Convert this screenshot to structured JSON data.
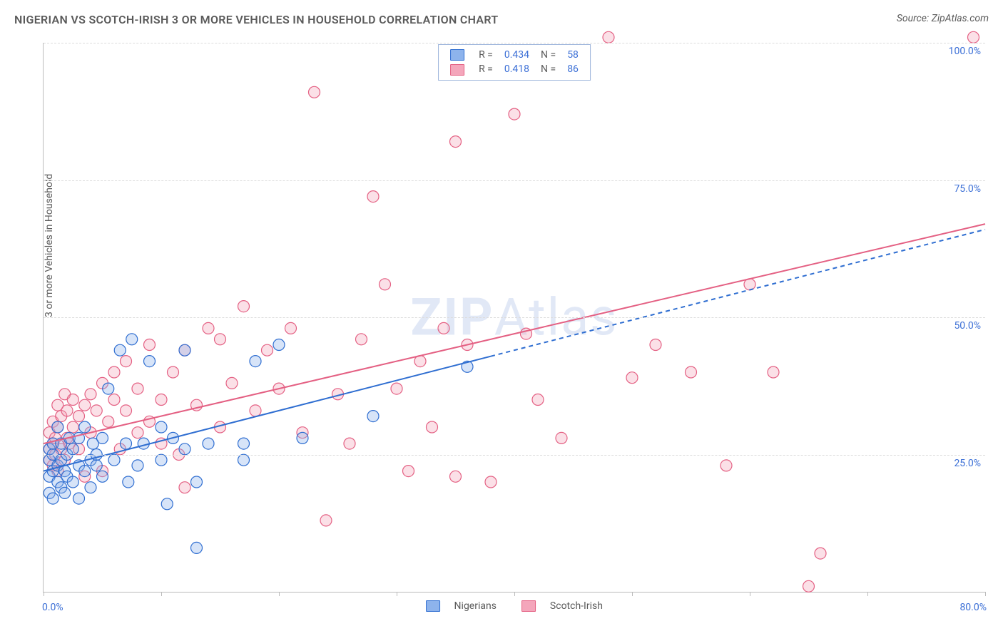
{
  "title": "NIGERIAN VS SCOTCH-IRISH 3 OR MORE VEHICLES IN HOUSEHOLD CORRELATION CHART",
  "source": "Source: ZipAtlas.com",
  "y_axis_label": "3 or more Vehicles in Household",
  "watermark": {
    "bold": "ZIP",
    "rest": "Atlas"
  },
  "chart": {
    "type": "scatter",
    "xlim": [
      0,
      80
    ],
    "ylim": [
      0,
      100
    ],
    "y_ticks": [
      25,
      50,
      75,
      100
    ],
    "y_tick_labels": [
      "25.0%",
      "50.0%",
      "75.0%",
      "100.0%"
    ],
    "x_ticks": [
      0,
      10,
      20,
      30,
      40,
      50,
      60,
      70,
      80
    ],
    "x_label_min": "0.0%",
    "x_label_max": "80.0%",
    "grid_color": "#dcdcdc",
    "axis_color": "#bbbbbb",
    "tick_label_color": "#3b6fd6",
    "background": "#ffffff",
    "marker_radius": 8,
    "series": {
      "nigerians": {
        "label": "Nigerians",
        "fill": "#8db3ec",
        "stroke": "#2f6ed1",
        "trend": {
          "slope": 0.55,
          "intercept": 22,
          "style": "solid",
          "color": "#2f6ed1",
          "width": 2,
          "x_to": 38,
          "dash_to": 80
        },
        "R": "0.434",
        "N": "58",
        "points": [
          [
            0.5,
            18
          ],
          [
            0.5,
            21
          ],
          [
            0.5,
            24
          ],
          [
            0.5,
            26
          ],
          [
            0.8,
            17
          ],
          [
            0.8,
            22
          ],
          [
            0.8,
            25
          ],
          [
            0.8,
            27
          ],
          [
            1.2,
            20
          ],
          [
            1.2,
            23
          ],
          [
            1.2,
            30
          ],
          [
            1.5,
            19
          ],
          [
            1.5,
            24
          ],
          [
            1.5,
            27
          ],
          [
            1.8,
            18
          ],
          [
            1.8,
            22
          ],
          [
            2,
            25
          ],
          [
            2,
            21
          ],
          [
            2.2,
            28
          ],
          [
            2.5,
            20
          ],
          [
            2.5,
            26
          ],
          [
            3,
            23
          ],
          [
            3,
            28
          ],
          [
            3,
            17
          ],
          [
            3.5,
            22
          ],
          [
            3.5,
            30
          ],
          [
            4,
            24
          ],
          [
            4,
            19
          ],
          [
            4.2,
            27
          ],
          [
            4.5,
            23
          ],
          [
            4.5,
            25
          ],
          [
            5,
            21
          ],
          [
            5,
            28
          ],
          [
            5.5,
            37
          ],
          [
            6,
            24
          ],
          [
            6.5,
            44
          ],
          [
            7,
            27
          ],
          [
            7.2,
            20
          ],
          [
            7.5,
            46
          ],
          [
            8,
            23
          ],
          [
            8.5,
            27
          ],
          [
            9,
            42
          ],
          [
            10,
            24
          ],
          [
            10,
            30
          ],
          [
            10.5,
            16
          ],
          [
            11,
            28
          ],
          [
            12,
            26
          ],
          [
            12,
            44
          ],
          [
            13,
            20
          ],
          [
            13,
            8
          ],
          [
            14,
            27
          ],
          [
            17,
            27
          ],
          [
            17,
            24
          ],
          [
            18,
            42
          ],
          [
            20,
            45
          ],
          [
            22,
            28
          ],
          [
            28,
            32
          ],
          [
            36,
            41
          ]
        ]
      },
      "scotch_irish": {
        "label": "Scotch-Irish",
        "fill": "#f4a6bb",
        "stroke": "#e46083",
        "trend": {
          "slope": 0.5,
          "intercept": 27,
          "style": "solid",
          "color": "#e46083",
          "width": 2,
          "x_to": 80
        },
        "R": "0.418",
        "N": "86",
        "points": [
          [
            0.5,
            24
          ],
          [
            0.5,
            26
          ],
          [
            0.5,
            29
          ],
          [
            0.8,
            23
          ],
          [
            0.8,
            27
          ],
          [
            0.8,
            31
          ],
          [
            1,
            25
          ],
          [
            1,
            28
          ],
          [
            1.2,
            22
          ],
          [
            1.2,
            30
          ],
          [
            1.2,
            34
          ],
          [
            1.5,
            26
          ],
          [
            1.5,
            32
          ],
          [
            1.8,
            24
          ],
          [
            1.8,
            36
          ],
          [
            2,
            28
          ],
          [
            2,
            33
          ],
          [
            2.2,
            27
          ],
          [
            2.5,
            30
          ],
          [
            2.5,
            35
          ],
          [
            3,
            26
          ],
          [
            3,
            32
          ],
          [
            3.5,
            21
          ],
          [
            3.5,
            34
          ],
          [
            4,
            29
          ],
          [
            4,
            36
          ],
          [
            4.5,
            33
          ],
          [
            5,
            22
          ],
          [
            5,
            38
          ],
          [
            5.5,
            31
          ],
          [
            6,
            35
          ],
          [
            6,
            40
          ],
          [
            6.5,
            26
          ],
          [
            7,
            33
          ],
          [
            7,
            42
          ],
          [
            8,
            29
          ],
          [
            8,
            37
          ],
          [
            9,
            31
          ],
          [
            9,
            45
          ],
          [
            10,
            27
          ],
          [
            10,
            35
          ],
          [
            11,
            40
          ],
          [
            11.5,
            25
          ],
          [
            12,
            44
          ],
          [
            12,
            19
          ],
          [
            13,
            34
          ],
          [
            14,
            48
          ],
          [
            15,
            30
          ],
          [
            15,
            46
          ],
          [
            16,
            38
          ],
          [
            17,
            52
          ],
          [
            18,
            33
          ],
          [
            19,
            44
          ],
          [
            20,
            37
          ],
          [
            21,
            48
          ],
          [
            22,
            29
          ],
          [
            23,
            91
          ],
          [
            24,
            13
          ],
          [
            25,
            36
          ],
          [
            26,
            27
          ],
          [
            27,
            46
          ],
          [
            28,
            72
          ],
          [
            29,
            56
          ],
          [
            30,
            37
          ],
          [
            31,
            22
          ],
          [
            32,
            42
          ],
          [
            33,
            30
          ],
          [
            34,
            48
          ],
          [
            35,
            82
          ],
          [
            35,
            21
          ],
          [
            36,
            45
          ],
          [
            38,
            20
          ],
          [
            40,
            87
          ],
          [
            41,
            47
          ],
          [
            42,
            35
          ],
          [
            44,
            28
          ],
          [
            48,
            101
          ],
          [
            50,
            39
          ],
          [
            52,
            45
          ],
          [
            55,
            40
          ],
          [
            58,
            23
          ],
          [
            60,
            56
          ],
          [
            62,
            40
          ],
          [
            65,
            1
          ],
          [
            66,
            7
          ],
          [
            79,
            101
          ]
        ]
      }
    }
  },
  "legend_stats": {
    "rows": [
      {
        "swatch": "nigerians",
        "R_label": "R =",
        "R": "0.434",
        "N_label": "N =",
        "N": "58"
      },
      {
        "swatch": "scotch_irish",
        "R_label": "R =",
        "R": "0.418",
        "N_label": "N =",
        "N": "86"
      }
    ]
  }
}
